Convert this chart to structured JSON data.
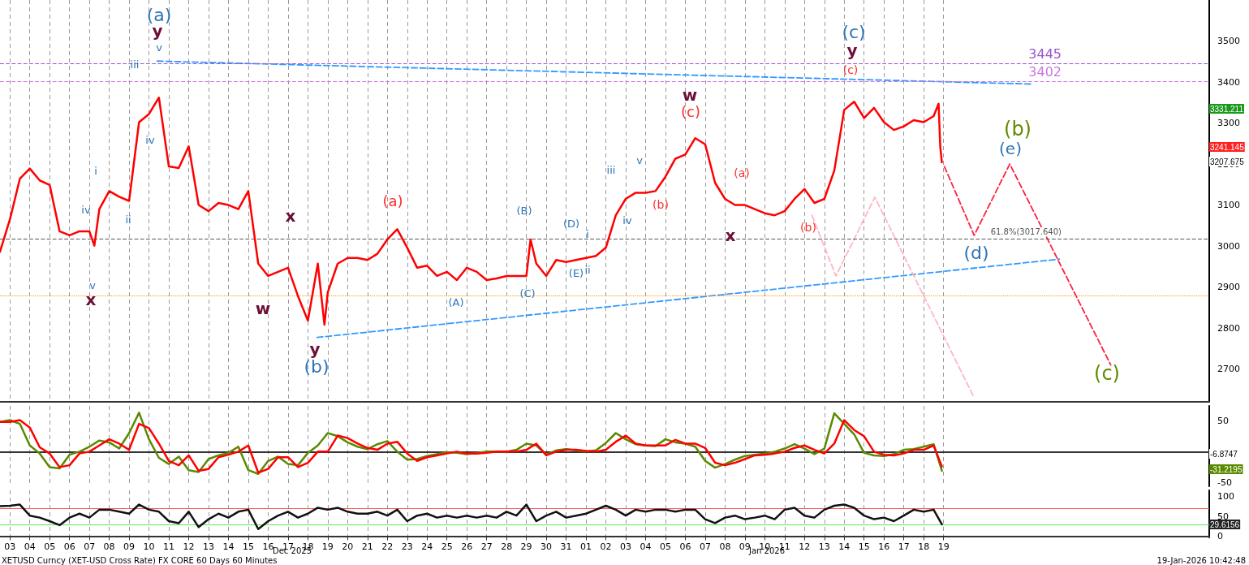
{
  "chart_data": [
    {
      "type": "line",
      "marker": "none",
      "grid": "x",
      "tick_labels": "y",
      "xlim": [
        "2025-12-03T00:00",
        "2026-02-01T21:00"
      ],
      "ylim": [
        2620,
        3600
      ],
      "yticks": [
        2700,
        2800,
        2900,
        3000,
        3100,
        3200,
        3300,
        3400,
        3500
      ],
      "xticks": [
        {
          "value": "2025-12-03T12:00",
          "label": null
        },
        {
          "value": "2025-12-04T12:00",
          "label": null
        },
        {
          "value": "2025-12-05T12:00",
          "label": null
        },
        {
          "value": "2025-12-06T12:00",
          "label": null
        },
        {
          "value": "2025-12-07T12:00",
          "label": null
        },
        {
          "value": "2025-12-08T12:00",
          "label": null
        },
        {
          "value": "2025-12-09T12:00",
          "label": null
        },
        {
          "value": "2025-12-10T12:00",
          "label": null
        },
        {
          "value": "2025-12-11T12:00",
          "label": null
        },
        {
          "value": "2025-12-12T12:00",
          "label": null
        },
        {
          "value": "2025-12-13T12:00",
          "label": null
        },
        {
          "value": "2025-12-14T12:00",
          "label": null
        },
        {
          "value": "2025-12-15T12:00",
          "label": null
        },
        {
          "value": "2025-12-16T12:00",
          "label": null
        },
        {
          "value": "2025-12-17T12:00",
          "label": null
        },
        {
          "value": "2025-12-18T12:00",
          "label": null
        },
        {
          "value": "2025-12-19T12:00",
          "label": null
        },
        {
          "value": "2025-12-20T12:00",
          "label": null
        },
        {
          "value": "2025-12-21T12:00",
          "label": null
        },
        {
          "value": "2025-12-22T12:00",
          "label": null
        },
        {
          "value": "2025-12-23T12:00",
          "label": null
        },
        {
          "value": "2025-12-24T12:00",
          "label": null
        },
        {
          "value": "2025-12-25T12:00",
          "label": null
        },
        {
          "value": "2025-12-26T12:00",
          "label": null
        },
        {
          "value": "2025-12-27T12:00",
          "label": null
        },
        {
          "value": "2025-12-28T12:00",
          "label": null
        },
        {
          "value": "2025-12-29T12:00",
          "label": null
        },
        {
          "value": "2025-12-30T12:00",
          "label": null
        },
        {
          "value": "2025-12-31T12:00",
          "label": null
        },
        {
          "value": "2026-01-01T12:00",
          "label": null
        },
        {
          "value": "2026-01-02T12:00",
          "label": null
        },
        {
          "value": "2026-01-03T12:00",
          "label": null
        },
        {
          "value": "2026-01-04T12:00",
          "label": null
        },
        {
          "value": "2026-01-05T12:00",
          "label": null
        },
        {
          "value": "2026-01-06T12:00",
          "label": null
        },
        {
          "value": "2026-01-07T12:00",
          "label": null
        },
        {
          "value": "2026-01-08T12:00",
          "label": null
        },
        {
          "value": "2026-01-09T12:00",
          "label": null
        },
        {
          "value": "2026-01-10T12:00",
          "label": null
        },
        {
          "value": "2026-01-11T12:00",
          "label": null
        },
        {
          "value": "2026-01-12T12:00",
          "label": null
        },
        {
          "value": "2026-01-13T12:00",
          "label": null
        },
        {
          "value": "2026-01-14T12:00",
          "label": null
        },
        {
          "value": "2026-01-15T12:00",
          "label": null
        },
        {
          "value": "2026-01-16T12:00",
          "label": null
        },
        {
          "value": "2026-01-17T12:00",
          "label": null
        },
        {
          "value": "2026-01-18T12:00",
          "label": null
        },
        {
          "value": "2026-01-19T12:00",
          "label": null
        }
      ],
      "series": [
        {
          "color": "#ff0000",
          "line_style": "solid",
          "x": [
            "2025-12-03T00:00",
            "2025-12-03T12:00",
            "2025-12-04T00:00",
            "2025-12-04T12:00",
            "2025-12-05T00:00",
            "2025-12-05T12:00",
            "2025-12-06T00:00",
            "2025-12-06T12:00",
            "2025-12-07T00:00",
            "2025-12-07T12:00",
            "2025-12-07T18:00",
            "2025-12-08T00:00",
            "2025-12-08T12:00",
            "2025-12-09T00:00",
            "2025-12-09T12:00",
            "2025-12-10T00:00",
            "2025-12-10T12:00",
            "2025-12-11T00:00",
            "2025-12-11T12:00",
            "2025-12-12T00:00",
            "2025-12-12T12:00",
            "2025-12-13T00:00",
            "2025-12-13T12:00",
            "2025-12-14T00:00",
            "2025-12-14T12:00",
            "2025-12-15T00:00",
            "2025-12-15T12:00",
            "2025-12-16T00:00",
            "2025-12-16T12:00",
            "2025-12-17T00:00",
            "2025-12-17T12:00",
            "2025-12-18T00:00",
            "2025-12-18T12:00",
            "2025-12-19T00:00",
            "2025-12-19T08:00",
            "2025-12-19T12:00",
            "2025-12-20T00:00",
            "2025-12-20T12:00",
            "2025-12-21T00:00",
            "2025-12-21T12:00",
            "2025-12-22T00:00",
            "2025-12-22T12:00",
            "2025-12-23T00:00",
            "2025-12-23T12:00",
            "2025-12-24T00:00",
            "2025-12-24T12:00",
            "2025-12-25T00:00",
            "2025-12-25T12:00",
            "2025-12-26T00:00",
            "2025-12-26T12:00",
            "2025-12-27T00:00",
            "2025-12-27T12:00",
            "2025-12-28T00:00",
            "2025-12-28T12:00",
            "2025-12-29T00:00",
            "2025-12-29T12:00",
            "2025-12-29T17:00",
            "2025-12-30T00:00",
            "2025-12-30T12:00",
            "2025-12-31T00:00",
            "2025-12-31T12:00",
            "2026-01-01T00:00",
            "2026-01-01T12:00",
            "2026-01-02T00:00",
            "2026-01-02T12:00",
            "2026-01-03T00:00",
            "2026-01-03T12:00",
            "2026-01-04T00:00",
            "2026-01-04T12:00",
            "2026-01-05T00:00",
            "2026-01-05T12:00",
            "2026-01-06T00:00",
            "2026-01-06T12:00",
            "2026-01-07T00:00",
            "2026-01-07T12:00",
            "2026-01-08T00:00",
            "2026-01-08T12:00",
            "2026-01-09T00:00",
            "2026-01-09T12:00",
            "2026-01-10T00:00",
            "2026-01-10T12:00",
            "2026-01-11T00:00",
            "2026-01-11T12:00",
            "2026-01-12T00:00",
            "2026-01-12T12:00",
            "2026-01-13T00:00",
            "2026-01-13T12:00",
            "2026-01-14T00:00",
            "2026-01-14T12:00",
            "2026-01-15T00:00",
            "2026-01-15T12:00",
            "2026-01-16T00:00",
            "2026-01-16T12:00",
            "2026-01-17T00:00",
            "2026-01-17T12:00",
            "2026-01-18T00:00",
            "2026-01-18T12:00",
            "2026-01-19T00:00",
            "2026-01-19T06:00",
            "2026-01-19T08:00",
            "2026-01-19T10:00"
          ],
          "values": [
            2986,
            3065,
            3164,
            3189,
            3160,
            3149,
            3036,
            3026,
            3036,
            3036,
            3001,
            3090,
            3134,
            3120,
            3110,
            3302,
            3322,
            3362,
            3194,
            3190,
            3243,
            3100,
            3085,
            3105,
            3100,
            3090,
            3134,
            2957,
            2927,
            2937,
            2947,
            2878,
            2818,
            2957,
            2808,
            2887,
            2957,
            2971,
            2971,
            2966,
            2981,
            3016,
            3041,
            2996,
            2947,
            2952,
            2927,
            2937,
            2917,
            2947,
            2937,
            2917,
            2921,
            2927,
            2927,
            2927,
            3016,
            2957,
            2927,
            2966,
            2961,
            2966,
            2971,
            2976,
            2996,
            3075,
            3115,
            3130,
            3130,
            3134,
            3169,
            3213,
            3223,
            3263,
            3248,
            3154,
            3115,
            3100,
            3100,
            3090,
            3080,
            3075,
            3085,
            3115,
            3139,
            3105,
            3115,
            3184,
            3332,
            3352,
            3312,
            3337,
            3302,
            3283,
            3292,
            3307,
            3302,
            3317,
            3347,
            3243,
            3204
          ]
        },
        {
          "color": "#3399ff",
          "line_style": "dashed",
          "x": [
            "2025-12-10T22:00",
            "2026-01-23T23:00"
          ],
          "values": [
            3451,
            3395
          ]
        },
        {
          "color": "#3399ff",
          "line_style": "dashed",
          "x": [
            "2025-12-18T23:00",
            "2026-01-25T08:00"
          ],
          "values": [
            2777,
            2968
          ]
        },
        {
          "color": "#ff2040",
          "line_style": "dashed",
          "x": [
            "2026-01-19T13:00",
            "2026-01-21T01:00",
            "2026-01-22T20:00",
            "2026-01-27T22:00"
          ],
          "values": [
            3194,
            3026,
            3200,
            2710
          ]
        },
        {
          "color": "#ffb6c4",
          "line_style": "dashed",
          "x": [
            "2026-01-12T21:00",
            "2026-01-14T02:00",
            "2026-01-16T01:00",
            "2026-01-21T01:00"
          ],
          "values": [
            3075,
            2927,
            3119,
            2630
          ]
        }
      ],
      "ref_lines": [
        {
          "axis": "y",
          "value": 3445,
          "label": "3445",
          "color": "#9955cc",
          "line_style": "dashed"
        },
        {
          "axis": "y",
          "value": 3402,
          "label": "3402",
          "color": "#cc77dd",
          "line_style": "dashed"
        },
        {
          "axis": "y",
          "value": 3017.64,
          "label": "61.8%(3017.640)",
          "color": "#555555",
          "line_style": "dashed"
        },
        {
          "axis": "y",
          "value": 2878,
          "label": null,
          "color": "#ff9900",
          "line_style": "dotted"
        }
      ],
      "annotations": [
        "(a)",
        "y",
        "v",
        "iii",
        "iv",
        "i",
        "iv",
        "ii",
        "v",
        "x",
        "x",
        "w",
        "y",
        "(b)",
        "(a)",
        "(A)",
        "(B)",
        "(C)",
        "(D)",
        "i",
        "(E)",
        "ii",
        "iii",
        "v",
        "iv",
        "(b)",
        "w",
        "(c)",
        "(a)",
        "x",
        "(b)",
        "(c)",
        "y",
        "(c)",
        "(b)",
        "(e)",
        "(d)",
        "(c)",
        "3331.211",
        "3241.145",
        "3207.675"
      ]
    },
    {
      "type": "line",
      "marker": "none",
      "grid": "x",
      "tick_labels": "y",
      "xlim": [
        "2025-12-03T00:00",
        "2026-02-01T21:00"
      ],
      "ylim": [
        -56,
        74
      ],
      "yticks": [
        -50,
        50
      ],
      "xticks": [
        {
          "value": "2025-12-03T12:00",
          "label": null
        },
        {
          "value": "2025-12-04T12:00",
          "label": null
        },
        {
          "value": "2025-12-05T12:00",
          "label": null
        },
        {
          "value": "2025-12-06T12:00",
          "label": null
        },
        {
          "value": "2025-12-07T12:00",
          "label": null
        },
        {
          "value": "2025-12-08T12:00",
          "label": null
        },
        {
          "value": "2025-12-09T12:00",
          "label": null
        },
        {
          "value": "2025-12-10T12:00",
          "label": null
        },
        {
          "value": "2025-12-11T12:00",
          "label": null
        },
        {
          "value": "2025-12-12T12:00",
          "label": null
        },
        {
          "value": "2025-12-13T12:00",
          "label": null
        },
        {
          "value": "2025-12-14T12:00",
          "label": null
        },
        {
          "value": "2025-12-15T12:00",
          "label": null
        },
        {
          "value": "2025-12-16T12:00",
          "label": null
        },
        {
          "value": "2025-12-17T12:00",
          "label": null
        },
        {
          "value": "2025-12-18T12:00",
          "label": null
        },
        {
          "value": "2025-12-19T12:00",
          "label": null
        },
        {
          "value": "2025-12-20T12:00",
          "label": null
        },
        {
          "value": "2025-12-21T12:00",
          "label": null
        },
        {
          "value": "2025-12-22T12:00",
          "label": null
        },
        {
          "value": "2025-12-23T12:00",
          "label": null
        },
        {
          "value": "2025-12-24T12:00",
          "label": null
        },
        {
          "value": "2025-12-25T12:00",
          "label": null
        },
        {
          "value": "2025-12-26T12:00",
          "label": null
        },
        {
          "value": "2025-12-27T12:00",
          "label": null
        },
        {
          "value": "2025-12-28T12:00",
          "label": null
        },
        {
          "value": "2025-12-29T12:00",
          "label": null
        },
        {
          "value": "2025-12-30T12:00",
          "label": null
        },
        {
          "value": "2025-12-31T12:00",
          "label": null
        },
        {
          "value": "2026-01-01T12:00",
          "label": null
        },
        {
          "value": "2026-01-02T12:00",
          "label": null
        },
        {
          "value": "2026-01-03T12:00",
          "label": null
        },
        {
          "value": "2026-01-04T12:00",
          "label": null
        },
        {
          "value": "2026-01-05T12:00",
          "label": null
        },
        {
          "value": "2026-01-06T12:00",
          "label": null
        },
        {
          "value": "2026-01-07T12:00",
          "label": null
        },
        {
          "value": "2026-01-08T12:00",
          "label": null
        },
        {
          "value": "2026-01-09T12:00",
          "label": null
        },
        {
          "value": "2026-01-10T12:00",
          "label": null
        },
        {
          "value": "2026-01-11T12:00",
          "label": null
        },
        {
          "value": "2026-01-12T12:00",
          "label": null
        },
        {
          "value": "2026-01-13T12:00",
          "label": null
        },
        {
          "value": "2026-01-14T12:00",
          "label": null
        },
        {
          "value": "2026-01-15T12:00",
          "label": null
        },
        {
          "value": "2026-01-16T12:00",
          "label": null
        },
        {
          "value": "2026-01-17T12:00",
          "label": null
        },
        {
          "value": "2026-01-18T12:00",
          "label": null
        },
        {
          "value": "2026-01-19T12:00",
          "label": null
        }
      ],
      "x": [
        "2025-12-03T00:00",
        "2025-12-03T12:00",
        "2025-12-04T00:00",
        "2025-12-04T12:00",
        "2025-12-05T00:00",
        "2025-12-05T12:00",
        "2025-12-06T00:00",
        "2025-12-06T12:00",
        "2025-12-07T00:00",
        "2025-12-07T12:00",
        "2025-12-08T00:00",
        "2025-12-08T12:00",
        "2025-12-09T00:00",
        "2025-12-09T12:00",
        "2025-12-10T00:00",
        "2025-12-10T12:00",
        "2025-12-11T00:00",
        "2025-12-11T12:00",
        "2025-12-12T00:00",
        "2025-12-12T12:00",
        "2025-12-13T00:00",
        "2025-12-13T12:00",
        "2025-12-14T00:00",
        "2025-12-14T12:00",
        "2025-12-15T00:00",
        "2025-12-15T12:00",
        "2025-12-16T00:00",
        "2025-12-16T12:00",
        "2025-12-17T00:00",
        "2025-12-17T12:00",
        "2025-12-18T00:00",
        "2025-12-18T12:00",
        "2025-12-19T00:00",
        "2025-12-19T12:00",
        "2025-12-20T00:00",
        "2025-12-20T12:00",
        "2025-12-21T00:00",
        "2025-12-21T12:00",
        "2025-12-22T00:00",
        "2025-12-22T12:00",
        "2025-12-23T00:00",
        "2025-12-23T12:00",
        "2025-12-24T00:00",
        "2025-12-24T12:00",
        "2025-12-25T00:00",
        "2025-12-25T12:00",
        "2025-12-26T00:00",
        "2025-12-26T12:00",
        "2025-12-27T00:00",
        "2025-12-27T12:00",
        "2025-12-28T00:00",
        "2025-12-28T12:00",
        "2025-12-29T00:00",
        "2025-12-29T12:00",
        "2025-12-30T00:00",
        "2025-12-30T12:00",
        "2025-12-31T00:00",
        "2025-12-31T12:00",
        "2026-01-01T00:00",
        "2026-01-01T12:00",
        "2026-01-02T00:00",
        "2026-01-02T12:00",
        "2026-01-03T00:00",
        "2026-01-03T12:00",
        "2026-01-04T00:00",
        "2026-01-04T12:00",
        "2026-01-05T00:00",
        "2026-01-05T12:00",
        "2026-01-06T00:00",
        "2026-01-06T12:00",
        "2026-01-07T00:00",
        "2026-01-07T12:00",
        "2026-01-08T00:00",
        "2026-01-08T12:00",
        "2026-01-09T00:00",
        "2026-01-09T12:00",
        "2026-01-10T00:00",
        "2026-01-10T12:00",
        "2026-01-11T00:00",
        "2026-01-11T12:00",
        "2026-01-12T00:00",
        "2026-01-12T12:00",
        "2026-01-13T00:00",
        "2026-01-13T12:00",
        "2026-01-14T00:00",
        "2026-01-14T12:00",
        "2026-01-15T00:00",
        "2026-01-15T12:00",
        "2026-01-16T00:00",
        "2026-01-16T12:00",
        "2026-01-17T00:00",
        "2026-01-17T12:00",
        "2026-01-18T00:00",
        "2026-01-18T12:00",
        "2026-01-19T00:00",
        "2026-01-19T10:00"
      ],
      "series": [
        {
          "color": "#5a8a00",
          "values": [
            48,
            51,
            45,
            10,
            -3,
            -25,
            -27,
            -5,
            0,
            8,
            18,
            15,
            5,
            30,
            63,
            20,
            -10,
            -20,
            -8,
            -30,
            -33,
            -12,
            -6,
            -2,
            8,
            -30,
            -36,
            -15,
            -8,
            -20,
            -22,
            -2,
            10,
            30,
            25,
            15,
            8,
            4,
            12,
            17,
            0,
            -13,
            -12,
            -7,
            -4,
            -1,
            -2,
            -4,
            -2,
            0,
            0,
            0,
            3,
            13,
            10,
            -5,
            2,
            4,
            2,
            0,
            2,
            14,
            30,
            20,
            12,
            10,
            9,
            20,
            15,
            13,
            8,
            -15,
            -26,
            -20,
            -13,
            -7,
            -5,
            -3,
            0,
            5,
            12,
            5,
            -4,
            5,
            62,
            45,
            28,
            -2,
            -6,
            -7,
            -4,
            3,
            4,
            8,
            12,
            -31
          ]
        },
        {
          "color": "#ff0000",
          "values": [
            48,
            48,
            51,
            39,
            7,
            -3,
            -25,
            -22,
            -3,
            0,
            10,
            20,
            13,
            3,
            45,
            38,
            13,
            -15,
            -22,
            -6,
            -31,
            -28,
            -9,
            -5,
            0,
            10,
            -34,
            -28,
            -9,
            -9,
            -25,
            -18,
            0,
            0,
            26,
            22,
            13,
            6,
            3,
            13,
            16,
            -3,
            -15,
            -9,
            -6,
            -3,
            0,
            -3,
            -3,
            -2,
            0,
            0,
            0,
            3,
            13,
            -6,
            0,
            3,
            3,
            1,
            0,
            3,
            16,
            26,
            13,
            10,
            10,
            10,
            19,
            13,
            13,
            6,
            -18,
            -22,
            -18,
            -12,
            -6,
            -5,
            -3,
            0,
            6,
            10,
            3,
            -3,
            13,
            51,
            35,
            25,
            0,
            -5,
            -6,
            -3,
            3,
            3,
            10,
            -24
          ]
        }
      ],
      "annotations": [
        "-6.8747",
        "-31.2195"
      ]
    },
    {
      "type": "line",
      "marker": "none",
      "grid": "x",
      "xlim": [
        "2025-12-03T00:00",
        "2026-02-01T21:00"
      ],
      "ylim": [
        -3,
        116
      ],
      "yticks": [
        0,
        50,
        100
      ],
      "xticks": [
        {
          "value": "2025-12-03T12:00",
          "label": "03"
        },
        {
          "value": "2025-12-04T12:00",
          "label": "04"
        },
        {
          "value": "2025-12-05T12:00",
          "label": "05"
        },
        {
          "value": "2025-12-06T12:00",
          "label": "06"
        },
        {
          "value": "2025-12-07T12:00",
          "label": "07"
        },
        {
          "value": "2025-12-08T12:00",
          "label": "08"
        },
        {
          "value": "2025-12-09T12:00",
          "label": "09"
        },
        {
          "value": "2025-12-10T12:00",
          "label": "10"
        },
        {
          "value": "2025-12-11T12:00",
          "label": "11"
        },
        {
          "value": "2025-12-12T12:00",
          "label": "12"
        },
        {
          "value": "2025-12-13T12:00",
          "label": "13"
        },
        {
          "value": "2025-12-14T12:00",
          "label": "14"
        },
        {
          "value": "2025-12-15T12:00",
          "label": "15"
        },
        {
          "value": "2025-12-16T12:00",
          "label": "16"
        },
        {
          "value": "2025-12-17T12:00",
          "label": "17"
        },
        {
          "value": "2025-12-18T12:00",
          "label": "18"
        },
        {
          "value": "2025-12-19T12:00",
          "label": "19"
        },
        {
          "value": "2025-12-20T12:00",
          "label": "20"
        },
        {
          "value": "2025-12-21T12:00",
          "label": "21"
        },
        {
          "value": "2025-12-22T12:00",
          "label": "22"
        },
        {
          "value": "2025-12-23T12:00",
          "label": "23"
        },
        {
          "value": "2025-12-24T12:00",
          "label": "24"
        },
        {
          "value": "2025-12-25T12:00",
          "label": "25"
        },
        {
          "value": "2025-12-26T12:00",
          "label": "26"
        },
        {
          "value": "2025-12-27T12:00",
          "label": "27"
        },
        {
          "value": "2025-12-28T12:00",
          "label": "28"
        },
        {
          "value": "2025-12-29T12:00",
          "label": "29"
        },
        {
          "value": "2025-12-30T12:00",
          "label": "30"
        },
        {
          "value": "2025-12-31T12:00",
          "label": "31"
        },
        {
          "value": "2026-01-01T12:00",
          "label": "01"
        },
        {
          "value": "2026-01-02T12:00",
          "label": "02"
        },
        {
          "value": "2026-01-03T12:00",
          "label": "03"
        },
        {
          "value": "2026-01-04T12:00",
          "label": "04"
        },
        {
          "value": "2026-01-05T12:00",
          "label": "05"
        },
        {
          "value": "2026-01-06T12:00",
          "label": "06"
        },
        {
          "value": "2026-01-07T12:00",
          "label": "07"
        },
        {
          "value": "2026-01-08T12:00",
          "label": "08"
        },
        {
          "value": "2026-01-09T12:00",
          "label": "09"
        },
        {
          "value": "2026-01-10T12:00",
          "label": "10"
        },
        {
          "value": "2026-01-11T12:00",
          "label": "11"
        },
        {
          "value": "2026-01-12T12:00",
          "label": "12"
        },
        {
          "value": "2026-01-13T12:00",
          "label": "13"
        },
        {
          "value": "2026-01-14T12:00",
          "label": "14"
        },
        {
          "value": "2026-01-15T12:00",
          "label": "15"
        },
        {
          "value": "2026-01-16T12:00",
          "label": "16"
        },
        {
          "value": "2026-01-17T12:00",
          "label": "17"
        },
        {
          "value": "2026-01-18T12:00",
          "label": "18"
        },
        {
          "value": "2026-01-19T12:00",
          "label": "19"
        }
      ],
      "x": [
        "2025-12-03T00:00",
        "2025-12-03T12:00",
        "2025-12-04T00:00",
        "2025-12-04T12:00",
        "2025-12-05T00:00",
        "2025-12-05T12:00",
        "2025-12-06T00:00",
        "2025-12-06T12:00",
        "2025-12-07T00:00",
        "2025-12-07T12:00",
        "2025-12-08T00:00",
        "2025-12-08T12:00",
        "2025-12-09T00:00",
        "2025-12-09T12:00",
        "2025-12-10T00:00",
        "2025-12-10T12:00",
        "2025-12-11T00:00",
        "2025-12-11T12:00",
        "2025-12-12T00:00",
        "2025-12-12T12:00",
        "2025-12-13T00:00",
        "2025-12-13T12:00",
        "2025-12-14T00:00",
        "2025-12-14T12:00",
        "2025-12-15T00:00",
        "2025-12-15T12:00",
        "2025-12-16T00:00",
        "2025-12-16T12:00",
        "2025-12-17T00:00",
        "2025-12-17T12:00",
        "2025-12-18T00:00",
        "2025-12-18T12:00",
        "2025-12-19T00:00",
        "2025-12-19T12:00",
        "2025-12-20T00:00",
        "2025-12-20T12:00",
        "2025-12-21T00:00",
        "2025-12-21T12:00",
        "2025-12-22T00:00",
        "2025-12-22T12:00",
        "2025-12-23T00:00",
        "2025-12-23T12:00",
        "2025-12-24T00:00",
        "2025-12-24T12:00",
        "2025-12-25T00:00",
        "2025-12-25T12:00",
        "2025-12-26T00:00",
        "2025-12-26T12:00",
        "2025-12-27T00:00",
        "2025-12-27T12:00",
        "2025-12-28T00:00",
        "2025-12-28T12:00",
        "2025-12-29T00:00",
        "2025-12-29T12:00",
        "2025-12-30T00:00",
        "2025-12-30T12:00",
        "2025-12-31T00:00",
        "2025-12-31T12:00",
        "2026-01-01T00:00",
        "2026-01-01T12:00",
        "2026-01-02T00:00",
        "2026-01-02T12:00",
        "2026-01-03T00:00",
        "2026-01-03T12:00",
        "2026-01-04T00:00",
        "2026-01-04T12:00",
        "2026-01-05T00:00",
        "2026-01-05T12:00",
        "2026-01-06T00:00",
        "2026-01-06T12:00",
        "2026-01-07T00:00",
        "2026-01-07T12:00",
        "2026-01-08T00:00",
        "2026-01-08T12:00",
        "2026-01-09T00:00",
        "2026-01-09T12:00",
        "2026-01-10T00:00",
        "2026-01-10T12:00",
        "2026-01-11T00:00",
        "2026-01-11T12:00",
        "2026-01-12T00:00",
        "2026-01-12T12:00",
        "2026-01-13T00:00",
        "2026-01-13T12:00",
        "2026-01-14T00:00",
        "2026-01-14T12:00",
        "2026-01-15T00:00",
        "2026-01-15T12:00",
        "2026-01-16T00:00",
        "2026-01-16T12:00",
        "2026-01-17T00:00",
        "2026-01-17T12:00",
        "2026-01-18T00:00",
        "2026-01-18T12:00",
        "2026-01-19T00:00",
        "2026-01-19T10:00"
      ],
      "series": [
        {
          "color": "#111111",
          "values": [
            76,
            77,
            80,
            52,
            47,
            38,
            28,
            47,
            57,
            47,
            67,
            67,
            62,
            57,
            80,
            67,
            62,
            38,
            33,
            62,
            23,
            43,
            57,
            47,
            62,
            67,
            18,
            38,
            52,
            62,
            47,
            57,
            72,
            67,
            72,
            62,
            57,
            57,
            62,
            52,
            67,
            38,
            52,
            57,
            47,
            52,
            47,
            52,
            47,
            52,
            47,
            62,
            52,
            80,
            38,
            52,
            62,
            47,
            52,
            57,
            67,
            77,
            67,
            52,
            67,
            62,
            67,
            67,
            62,
            67,
            67,
            43,
            33,
            47,
            52,
            43,
            47,
            52,
            43,
            67,
            72,
            52,
            47,
            67,
            77,
            80,
            72,
            52,
            43,
            47,
            38,
            52,
            67,
            62,
            67,
            30
          ]
        }
      ],
      "ref_lines": [
        {
          "axis": "y",
          "value": 70,
          "label": null,
          "color": "#ff5555",
          "line_style": "solid"
        },
        {
          "axis": "y",
          "value": 30,
          "label": null,
          "color": "#55ee55",
          "line_style": "solid"
        }
      ],
      "annotations": [
        "XETUSD Curncy (XET-USD Cross Rate) FX CORE 60 Days 60 Minutes",
        "Dec 2025",
        "Jan 2026",
        "19-Jan-2026 10:42:48",
        "29.6156"
      ]
    }
  ]
}
